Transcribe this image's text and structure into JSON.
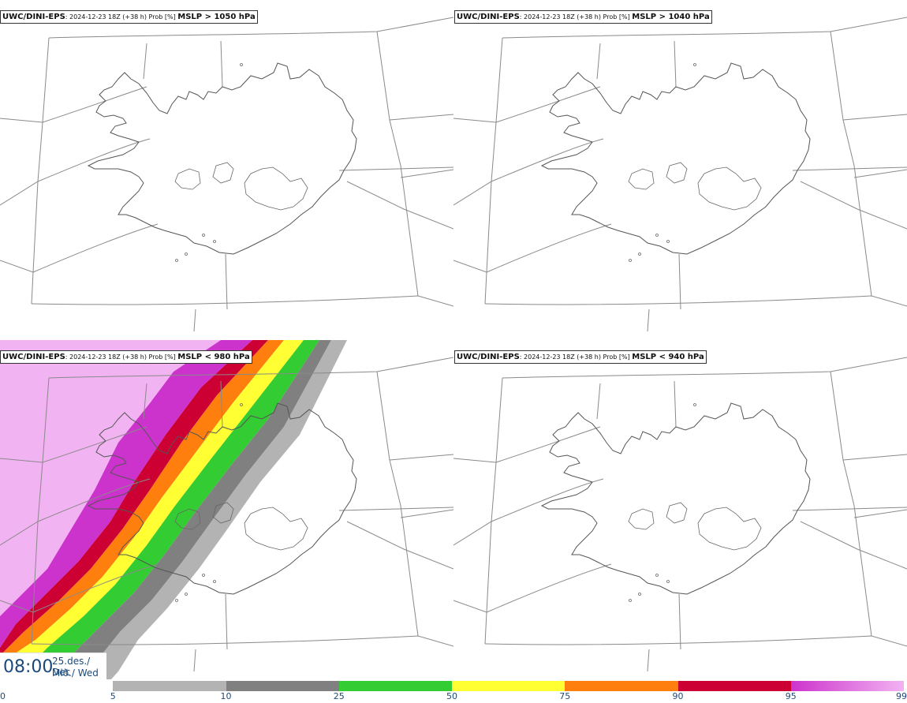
{
  "panels": [
    {
      "source": "UWC/DINI-EPS",
      "run": "2024-12-23 18Z (+38 h) Prob [%]",
      "quantity": "MSLP > 1050 hPa",
      "shaded": false
    },
    {
      "source": "UWC/DINI-EPS",
      "run": "2024-12-23 18Z (+38 h) Prob [%]",
      "quantity": "MSLP > 1040 hPa",
      "shaded": false
    },
    {
      "source": "UWC/DINI-EPS",
      "run": "2024-12-23 18Z (+38 h) Prob [%]",
      "quantity": "MSLP < 980 hPa",
      "shaded": true
    },
    {
      "source": "UWC/DINI-EPS",
      "run": "2024-12-23 18Z (+38 h) Prob [%]",
      "quantity": "MSLP < 940 hPa",
      "shaded": false
    }
  ],
  "valid_time": {
    "clock": "08:00",
    "date_line": "25.des./ Dec",
    "day_line": "Mið./ Wed"
  },
  "colorbar": {
    "ticks": [
      "0",
      "5",
      "10",
      "25",
      "50",
      "75",
      "90",
      "95",
      "99"
    ],
    "colors": [
      "#ffffff",
      "#b3b3b3",
      "#808080",
      "#33cc33",
      "#ffff33",
      "#ff7f0e",
      "#cc0033",
      "#cc33cc",
      "#f2b3f2"
    ]
  }
}
